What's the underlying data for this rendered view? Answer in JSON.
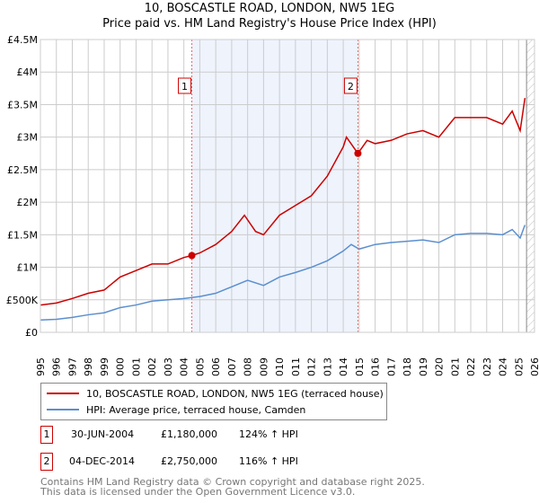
{
  "chart_data": {
    "type": "line",
    "title": "10, BOSCASTLE ROAD, LONDON, NW5 1EG",
    "subtitle": "Price paid vs. HM Land Registry's House Price Index (HPI)",
    "xlim": [
      1995,
      2026
    ],
    "ylim": [
      0,
      4500000
    ],
    "x_ticks": [
      "1995",
      "1996",
      "1997",
      "1998",
      "1999",
      "2000",
      "2001",
      "2002",
      "2003",
      "2004",
      "2005",
      "2006",
      "2007",
      "2008",
      "2009",
      "2010",
      "2011",
      "2012",
      "2013",
      "2014",
      "2015",
      "2016",
      "2017",
      "2018",
      "2019",
      "2020",
      "2021",
      "2022",
      "2023",
      "2024",
      "2025",
      "2026"
    ],
    "y_ticks": [
      {
        "v": 0,
        "label": "£0"
      },
      {
        "v": 500000,
        "label": "£500K"
      },
      {
        "v": 1000000,
        "label": "£1M"
      },
      {
        "v": 1500000,
        "label": "£1.5M"
      },
      {
        "v": 2000000,
        "label": "£2M"
      },
      {
        "v": 2500000,
        "label": "£2.5M"
      },
      {
        "v": 3000000,
        "label": "£3M"
      },
      {
        "v": 3500000,
        "label": "£3.5M"
      },
      {
        "v": 4000000,
        "label": "£4M"
      },
      {
        "v": 4500000,
        "label": "£4.5M"
      }
    ],
    "grid": true,
    "series": [
      {
        "name": "10, BOSCASTLE ROAD, LONDON, NW5 1EG (terraced house)",
        "color": "#cc0000",
        "x": [
          1995,
          1996,
          1997,
          1998,
          1999,
          2000,
          2001,
          2002,
          2003,
          2004,
          2004.5,
          2005,
          2006,
          2007,
          2007.8,
          2008.5,
          2009,
          2010,
          2011,
          2012,
          2013,
          2014,
          2014.2,
          2014.92,
          2015.5,
          2016,
          2017,
          2018,
          2019,
          2020,
          2021,
          2022,
          2023,
          2024,
          2024.6,
          2025.1,
          2025.4
        ],
        "y": [
          420000,
          450000,
          520000,
          600000,
          650000,
          850000,
          950000,
          1050000,
          1050000,
          1150000,
          1180000,
          1220000,
          1350000,
          1550000,
          1800000,
          1550000,
          1500000,
          1800000,
          1950000,
          2100000,
          2400000,
          2850000,
          3000000,
          2750000,
          2950000,
          2900000,
          2950000,
          3050000,
          3100000,
          3000000,
          3300000,
          3300000,
          3300000,
          3200000,
          3400000,
          3100000,
          3600000
        ]
      },
      {
        "name": "HPI: Average price, terraced house, Camden",
        "color": "#5b8fd0",
        "x": [
          1995,
          1996,
          1997,
          1998,
          1999,
          2000,
          2001,
          2002,
          2003,
          2004,
          2005,
          2006,
          2007,
          2008,
          2009,
          2010,
          2011,
          2012,
          2013,
          2014,
          2014.5,
          2015,
          2016,
          2017,
          2018,
          2019,
          2020,
          2021,
          2022,
          2023,
          2024,
          2024.6,
          2025.1,
          2025.4
        ],
        "y": [
          190000,
          200000,
          230000,
          270000,
          300000,
          380000,
          420000,
          480000,
          500000,
          520000,
          550000,
          600000,
          700000,
          800000,
          720000,
          850000,
          920000,
          1000000,
          1100000,
          1250000,
          1350000,
          1280000,
          1350000,
          1380000,
          1400000,
          1420000,
          1380000,
          1500000,
          1520000,
          1520000,
          1500000,
          1580000,
          1450000,
          1650000
        ]
      }
    ],
    "sales": [
      {
        "id": "1",
        "x": 2004.5,
        "y": 1180000,
        "date": "30-JUN-2004",
        "price": "£1,180,000",
        "hpi": "124% ↑ HPI"
      },
      {
        "id": "2",
        "x": 2014.92,
        "y": 2750000,
        "date": "04-DEC-2014",
        "price": "£2,750,000",
        "hpi": "116% ↑ HPI"
      }
    ],
    "forecast_from": 2025.5
  },
  "footer": {
    "line1": "Contains HM Land Registry data © Crown copyright and database right 2025.",
    "line2": "This data is licensed under the Open Government Licence v3.0."
  }
}
